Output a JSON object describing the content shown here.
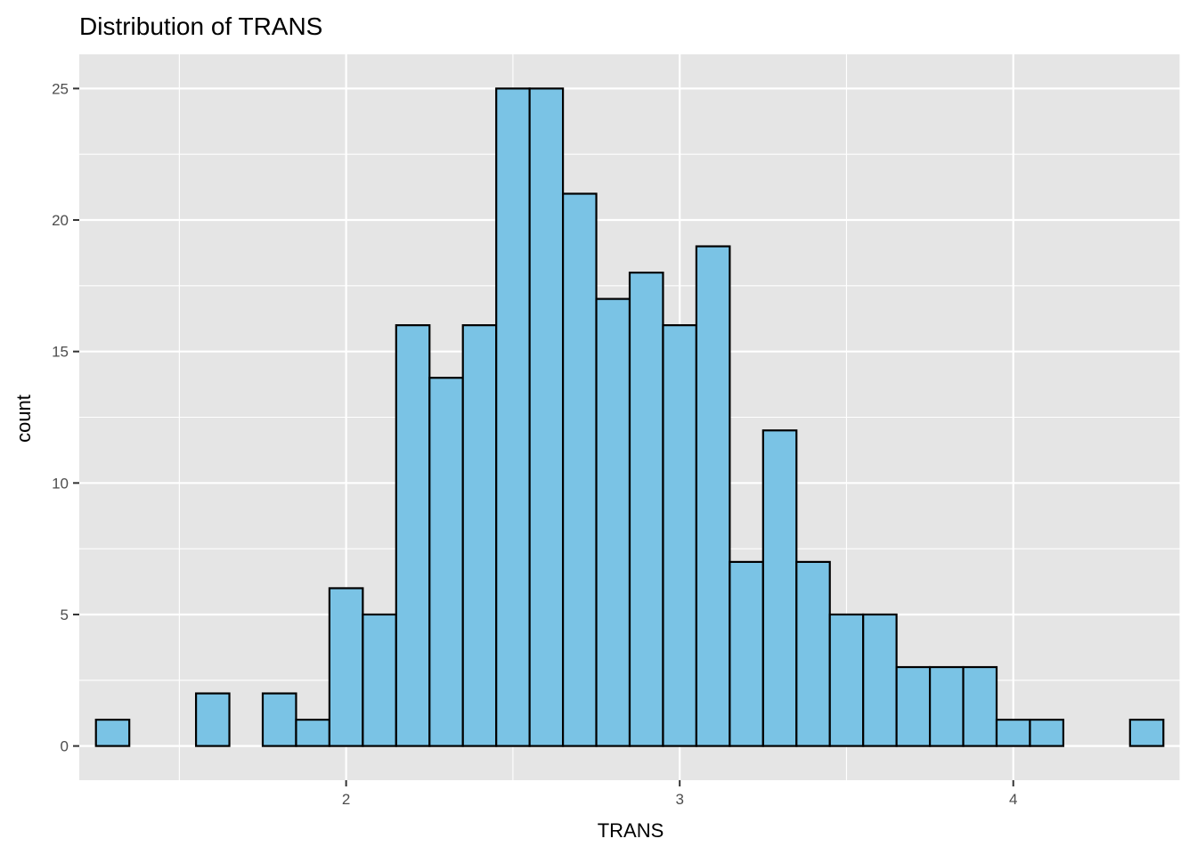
{
  "chart_data": {
    "type": "bar",
    "title": "Distribution of TRANS",
    "xlabel": "TRANS",
    "ylabel": "count",
    "xlim": [
      1.2,
      4.5
    ],
    "ylim": [
      -1.3,
      26.3
    ],
    "x_ticks": [
      2,
      3,
      4
    ],
    "y_ticks": [
      0,
      5,
      10,
      15,
      20,
      25
    ],
    "bin_width": 0.1,
    "bins": [
      {
        "x0": 1.25,
        "x1": 1.35,
        "count": 1
      },
      {
        "x0": 1.35,
        "x1": 1.45,
        "count": 0
      },
      {
        "x0": 1.45,
        "x1": 1.55,
        "count": 0
      },
      {
        "x0": 1.55,
        "x1": 1.65,
        "count": 2
      },
      {
        "x0": 1.65,
        "x1": 1.75,
        "count": 0
      },
      {
        "x0": 1.75,
        "x1": 1.85,
        "count": 2
      },
      {
        "x0": 1.85,
        "x1": 1.95,
        "count": 1
      },
      {
        "x0": 1.95,
        "x1": 2.05,
        "count": 6
      },
      {
        "x0": 2.05,
        "x1": 2.15,
        "count": 5
      },
      {
        "x0": 2.15,
        "x1": 2.25,
        "count": 16
      },
      {
        "x0": 2.25,
        "x1": 2.35,
        "count": 14
      },
      {
        "x0": 2.35,
        "x1": 2.45,
        "count": 16
      },
      {
        "x0": 2.45,
        "x1": 2.55,
        "count": 25
      },
      {
        "x0": 2.55,
        "x1": 2.65,
        "count": 25
      },
      {
        "x0": 2.65,
        "x1": 2.75,
        "count": 21
      },
      {
        "x0": 2.75,
        "x1": 2.85,
        "count": 17
      },
      {
        "x0": 2.85,
        "x1": 2.95,
        "count": 18
      },
      {
        "x0": 2.95,
        "x1": 3.05,
        "count": 16
      },
      {
        "x0": 3.05,
        "x1": 3.15,
        "count": 19
      },
      {
        "x0": 3.15,
        "x1": 3.25,
        "count": 7
      },
      {
        "x0": 3.25,
        "x1": 3.35,
        "count": 12
      },
      {
        "x0": 3.35,
        "x1": 3.45,
        "count": 7
      },
      {
        "x0": 3.45,
        "x1": 3.55,
        "count": 5
      },
      {
        "x0": 3.55,
        "x1": 3.65,
        "count": 5
      },
      {
        "x0": 3.65,
        "x1": 3.75,
        "count": 3
      },
      {
        "x0": 3.75,
        "x1": 3.85,
        "count": 3
      },
      {
        "x0": 3.85,
        "x1": 3.95,
        "count": 3
      },
      {
        "x0": 3.95,
        "x1": 4.05,
        "count": 1
      },
      {
        "x0": 4.05,
        "x1": 4.15,
        "count": 1
      },
      {
        "x0": 4.15,
        "x1": 4.25,
        "count": 0
      },
      {
        "x0": 4.25,
        "x1": 4.35,
        "count": 0
      },
      {
        "x0": 4.35,
        "x1": 4.45,
        "count": 1
      }
    ],
    "grid": true,
    "colors": {
      "panel_background": "#e5e5e5",
      "grid_major": "#ffffff",
      "bar_fill": "#7ac3e5",
      "bar_outline": "#000000"
    }
  }
}
